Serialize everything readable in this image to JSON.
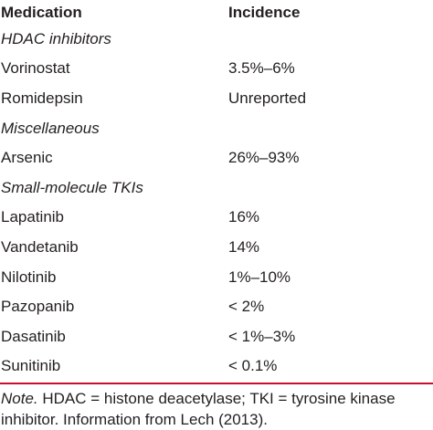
{
  "header": {
    "col1": "Medication",
    "col2": "Incidence"
  },
  "rows": [
    {
      "type": "group",
      "medication": "HDAC inhibitors",
      "incidence": ""
    },
    {
      "type": "item",
      "medication": "Vorinostat",
      "incidence": "3.5%–6%"
    },
    {
      "type": "item",
      "medication": "Romidepsin",
      "incidence": "Unreported"
    },
    {
      "type": "group",
      "medication": "Miscellaneous",
      "incidence": ""
    },
    {
      "type": "item",
      "medication": "Arsenic",
      "incidence": "26%–93%"
    },
    {
      "type": "group",
      "medication": "Small-molecule TKIs",
      "incidence": ""
    },
    {
      "type": "item",
      "medication": "Lapatinib",
      "incidence": "16%"
    },
    {
      "type": "item",
      "medication": "Vandetanib",
      "incidence": "14%"
    },
    {
      "type": "item",
      "medication": "Nilotinib",
      "incidence": "1%–10%"
    },
    {
      "type": "item",
      "medication": "Pazopanib",
      "incidence": "< 2%"
    },
    {
      "type": "item",
      "medication": "Dasatinib",
      "incidence": "< 1%–3%"
    },
    {
      "type": "item",
      "medication": "Sunitinib",
      "incidence": "< 0.1%"
    }
  ],
  "note": {
    "label": "Note.",
    "text": " HDAC = histone deacetylase; TKI = tyrosine kinase inhibitor. Information from Lech (2013)."
  },
  "colors": {
    "rule": "#c8102e",
    "text": "#231f20"
  }
}
